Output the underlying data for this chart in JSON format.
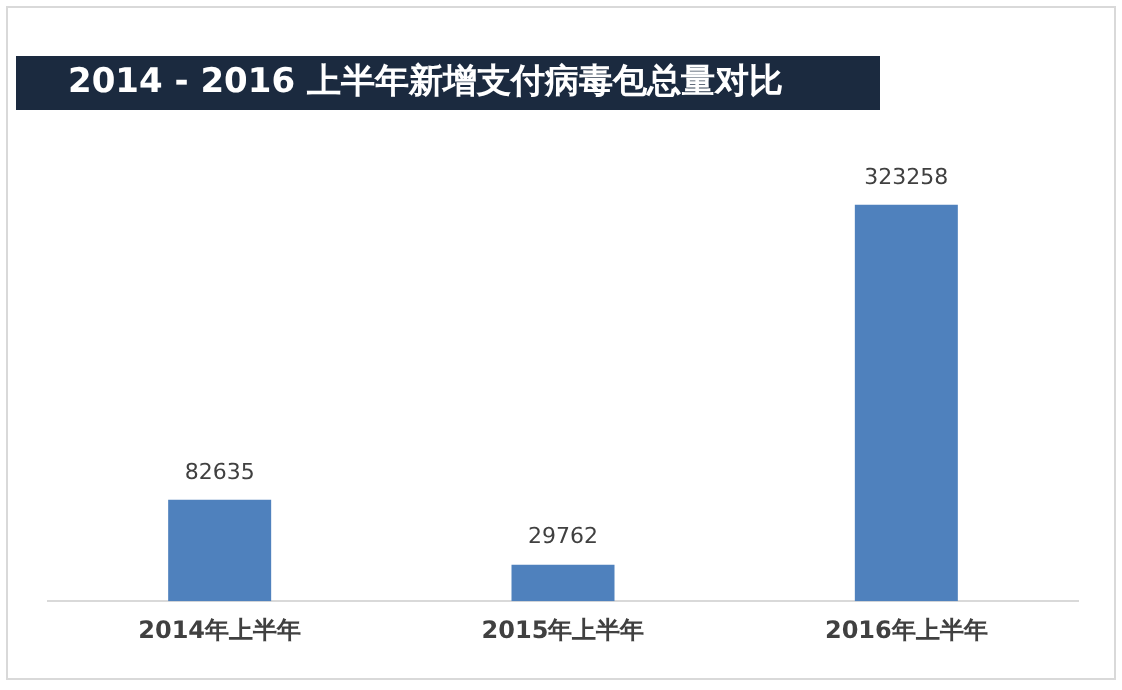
{
  "chart_data": {
    "type": "bar",
    "title": "2014 - 2016 上半年新增支付病毒包总量对比",
    "categories": [
      "2014年上半年",
      "2015年上半年",
      "2016年上半年"
    ],
    "values": [
      82635,
      29762,
      323258
    ],
    "color": "#4f81bd",
    "data_labels": true
  }
}
